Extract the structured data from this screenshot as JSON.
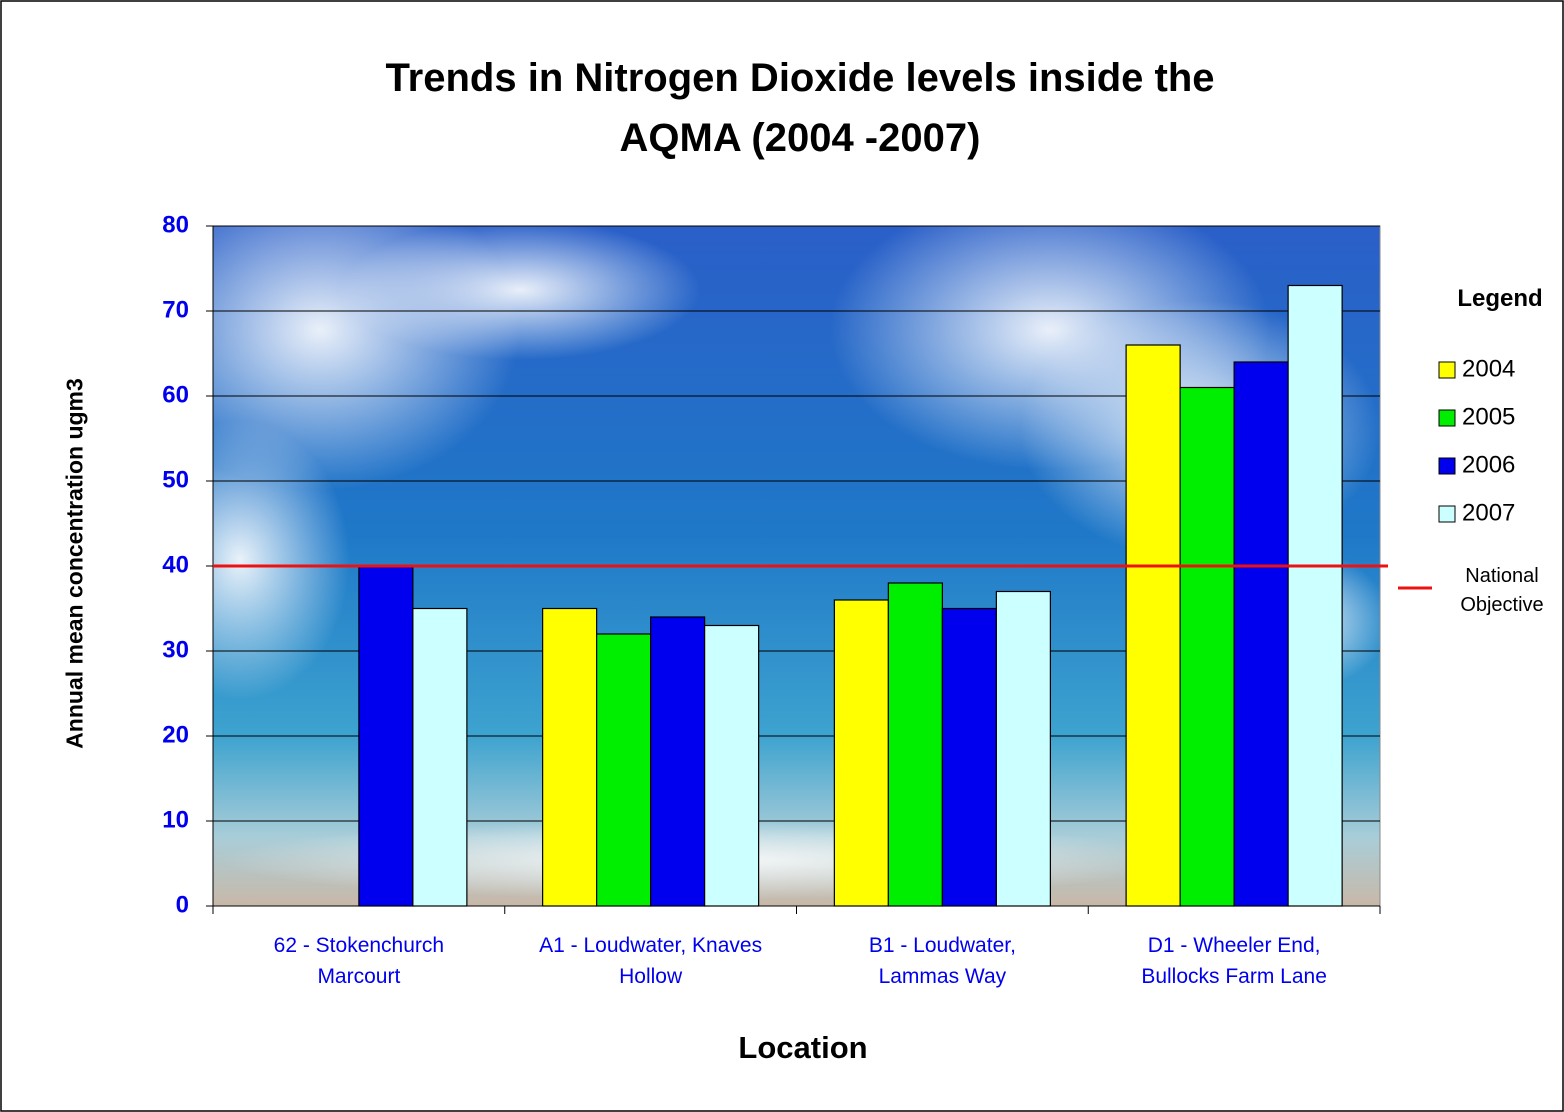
{
  "chart_data": {
    "type": "bar",
    "title": "Trends in Nitrogen Dioxide levels inside the\nAQMA (2004 -2007)",
    "x_label": "Location",
    "y_label": "Annual mean concentration ugm3",
    "categories": [
      "62 - Stokenchurch\nMarcourt",
      "A1 - Loudwater, Knaves\nHollow",
      "B1 - Loudwater,\nLammas Way",
      "D1 - Wheeler End,\nBullocks Farm Lane"
    ],
    "series": [
      {
        "name": "2004",
        "color": "#ffff00",
        "values": [
          null,
          35,
          36,
          66
        ]
      },
      {
        "name": "2005",
        "color": "#00ee00",
        "values": [
          null,
          32,
          38,
          61
        ]
      },
      {
        "name": "2006",
        "color": "#0000ee",
        "values": [
          40,
          34,
          35,
          64
        ]
      },
      {
        "name": "2007",
        "color": "#ccffff",
        "values": [
          35,
          33,
          37,
          73
        ]
      }
    ],
    "ylim": [
      0,
      80
    ],
    "yticks": [
      0,
      10,
      20,
      30,
      40,
      50,
      60,
      70,
      80
    ],
    "grid": true,
    "legend_title": "Legend",
    "legend": "right",
    "reference_line": {
      "value": 40,
      "label": "National\nObjective",
      "color": "#ee1111"
    }
  }
}
